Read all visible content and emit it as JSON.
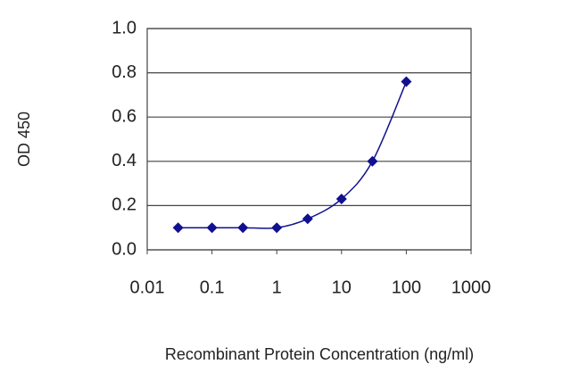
{
  "chart_data": {
    "type": "line",
    "x_label": "Recombinant Protein Concentration (ng/ml)",
    "y_label": "OD 450",
    "x": [
      0.03,
      0.1,
      0.3,
      1,
      3,
      10,
      30,
      100
    ],
    "series": [
      {
        "color": "#101090",
        "values": [
          0.1,
          0.1,
          0.1,
          0.1,
          0.14,
          0.23,
          0.4,
          0.76
        ]
      }
    ],
    "xscale": "log",
    "xlim": [
      0.01,
      1000
    ],
    "xticks": [
      0.01,
      0.1,
      1,
      10,
      100,
      1000
    ],
    "ylim": [
      0,
      1
    ],
    "yticks": [
      {
        "value": 0,
        "label": "0.0"
      },
      0.2,
      0.4,
      0.6,
      0.8,
      {
        "value": 1,
        "label": "1.0"
      }
    ],
    "grid": true
  }
}
